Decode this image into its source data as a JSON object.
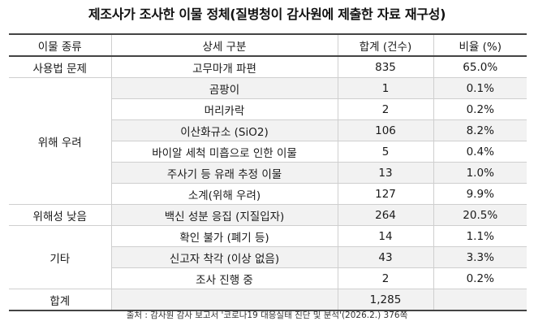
{
  "title": "제조사가 조사한 이물 정체(질병청이 감사원에 제출한 자료 재구성)",
  "table": {
    "headers": [
      "이물 종류",
      "상세 구분",
      "합계 (건수)",
      "비율 (%)"
    ],
    "rows": [
      {
        "category": "사용법 문제",
        "detail": "고무마개 파편",
        "count": "835",
        "ratio": "65.0%"
      },
      {
        "category": "위해 우려",
        "detail": "곰팡이",
        "count": "1",
        "ratio": "0.1%"
      },
      {
        "category": "",
        "detail": "머리카락",
        "count": "2",
        "ratio": "0.2%"
      },
      {
        "category": "",
        "detail": "이산화규소 (SiO2)",
        "count": "106",
        "ratio": "8.2%"
      },
      {
        "category": "",
        "detail": "바이알 세척 미흡으로 인한 이물",
        "count": "5",
        "ratio": "0.4%"
      },
      {
        "category": "",
        "detail": "주사기 등 유래 추정 이물",
        "count": "13",
        "ratio": "1.0%"
      },
      {
        "category": "",
        "detail": "소계(위해 우려)",
        "count": "127",
        "ratio": "9.9%"
      },
      {
        "category": "위해성 낮음",
        "detail": "백신 성분 응집 (지질입자)",
        "count": "264",
        "ratio": "20.5%"
      },
      {
        "category": "기타",
        "detail": "확인 불가 (폐기 등)",
        "count": "14",
        "ratio": "1.1%"
      },
      {
        "category": "",
        "detail": "신고자 착각 (이상 없음)",
        "count": "43",
        "ratio": "3.3%"
      },
      {
        "category": "",
        "detail": "조사 진행 중",
        "count": "2",
        "ratio": "0.2%"
      }
    ],
    "total": {
      "label": "합계",
      "detail": "",
      "count": "1,285",
      "ratio": ""
    }
  },
  "source": "출처 : 감사원 감사 보고서 '코로나19 대응실태 진단 및 분석'(2026.2.) 376쪽"
}
